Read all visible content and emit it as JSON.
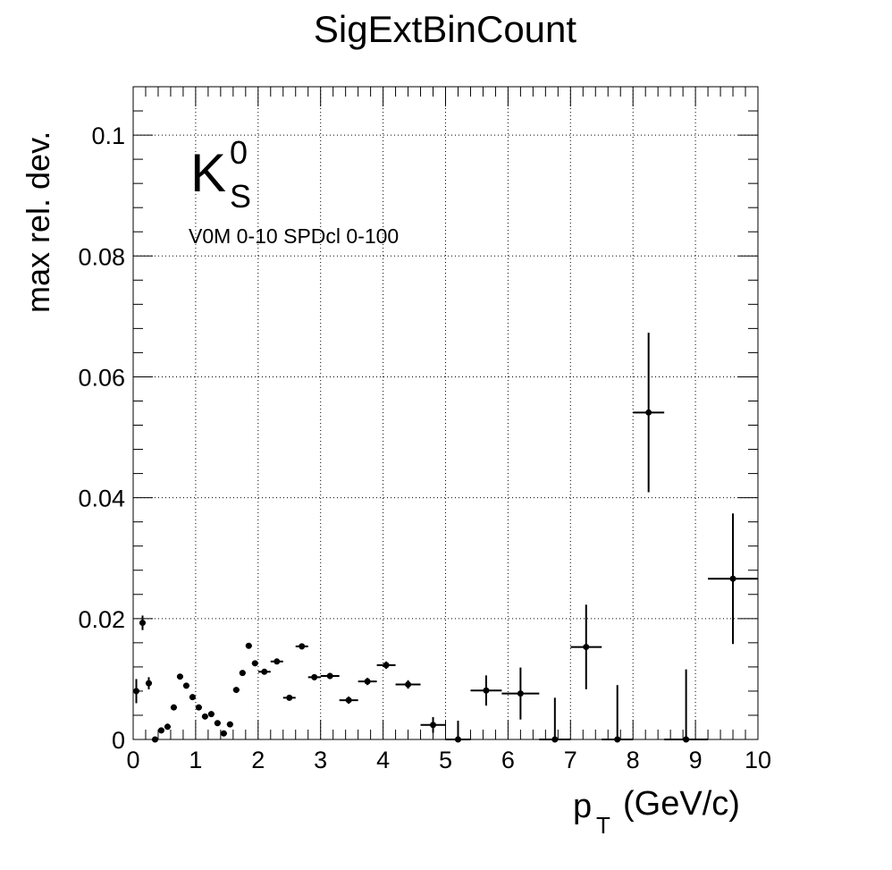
{
  "chart_data": {
    "type": "scatter",
    "title": "SigExtBinCount",
    "xlabel": "p",
    "xlabel_sub": "T",
    "xlabel_unit": "(GeV/c)",
    "ylabel": "max rel. dev.",
    "xlim": [
      0,
      10
    ],
    "ylim": [
      0,
      0.108
    ],
    "x_ticks": [
      "0",
      "1",
      "2",
      "3",
      "4",
      "5",
      "6",
      "7",
      "8",
      "9",
      "10"
    ],
    "y_ticks": [
      "0",
      "0.02",
      "0.04",
      "0.06",
      "0.08",
      "0.1"
    ],
    "grid": true,
    "particle_label": {
      "base": "K",
      "sub": "S",
      "sup": "0"
    },
    "selection_label": "V0M 0-10 SPDcl 0-100",
    "series": [
      {
        "points": [
          {
            "x": 0.05,
            "xerr": 0.05,
            "y": 0.008,
            "yerr": 0.002
          },
          {
            "x": 0.15,
            "xerr": 0.05,
            "y": 0.0193,
            "yerr": 0.0012
          },
          {
            "x": 0.25,
            "xerr": 0.05,
            "y": 0.0093,
            "yerr": 0.001
          },
          {
            "x": 0.35,
            "xerr": 0.05,
            "y": 0.0,
            "yerr": 0.0004
          },
          {
            "x": 0.45,
            "xerr": 0.05,
            "y": 0.0015,
            "yerr": 0.0003
          },
          {
            "x": 0.55,
            "xerr": 0.05,
            "y": 0.0021,
            "yerr": 0.0003
          },
          {
            "x": 0.65,
            "xerr": 0.05,
            "y": 0.0053,
            "yerr": 0.0003
          },
          {
            "x": 0.75,
            "xerr": 0.05,
            "y": 0.0104,
            "yerr": 0.0003
          },
          {
            "x": 0.85,
            "xerr": 0.05,
            "y": 0.0089,
            "yerr": 0.0003
          },
          {
            "x": 0.95,
            "xerr": 0.05,
            "y": 0.007,
            "yerr": 0.0003
          },
          {
            "x": 1.05,
            "xerr": 0.05,
            "y": 0.0053,
            "yerr": 0.0003
          },
          {
            "x": 1.15,
            "xerr": 0.05,
            "y": 0.0038,
            "yerr": 0.0003
          },
          {
            "x": 1.25,
            "xerr": 0.05,
            "y": 0.0042,
            "yerr": 0.0003
          },
          {
            "x": 1.35,
            "xerr": 0.05,
            "y": 0.0027,
            "yerr": 0.0003
          },
          {
            "x": 1.45,
            "xerr": 0.05,
            "y": 0.001,
            "yerr": 0.0003
          },
          {
            "x": 1.55,
            "xerr": 0.05,
            "y": 0.0025,
            "yerr": 0.0003
          },
          {
            "x": 1.65,
            "xerr": 0.05,
            "y": 0.0082,
            "yerr": 0.0003
          },
          {
            "x": 1.75,
            "xerr": 0.05,
            "y": 0.011,
            "yerr": 0.0003
          },
          {
            "x": 1.85,
            "xerr": 0.05,
            "y": 0.0155,
            "yerr": 0.0004
          },
          {
            "x": 1.95,
            "xerr": 0.05,
            "y": 0.0126,
            "yerr": 0.0004
          },
          {
            "x": 2.1,
            "xerr": 0.1,
            "y": 0.0112,
            "yerr": 0.0004
          },
          {
            "x": 2.3,
            "xerr": 0.1,
            "y": 0.0129,
            "yerr": 0.0004
          },
          {
            "x": 2.5,
            "xerr": 0.1,
            "y": 0.0069,
            "yerr": 0.0004
          },
          {
            "x": 2.7,
            "xerr": 0.1,
            "y": 0.0154,
            "yerr": 0.0005
          },
          {
            "x": 2.9,
            "xerr": 0.1,
            "y": 0.0103,
            "yerr": 0.0005
          },
          {
            "x": 3.15,
            "xerr": 0.15,
            "y": 0.0105,
            "yerr": 0.0005
          },
          {
            "x": 3.45,
            "xerr": 0.15,
            "y": 0.0065,
            "yerr": 0.0006
          },
          {
            "x": 3.75,
            "xerr": 0.15,
            "y": 0.0096,
            "yerr": 0.0006
          },
          {
            "x": 4.05,
            "xerr": 0.15,
            "y": 0.0123,
            "yerr": 0.0006
          },
          {
            "x": 4.4,
            "xerr": 0.2,
            "y": 0.0091,
            "yerr": 0.0007
          },
          {
            "x": 4.8,
            "xerr": 0.2,
            "y": 0.0024,
            "yerr": 0.0013
          },
          {
            "x": 5.2,
            "xerr": 0.2,
            "y": 0.0,
            "yerr": 0.0031
          },
          {
            "x": 5.65,
            "xerr": 0.25,
            "y": 0.0081,
            "yerr": 0.0025
          },
          {
            "x": 6.2,
            "xerr": 0.3,
            "y": 0.0076,
            "yerr": 0.0043
          },
          {
            "x": 6.75,
            "xerr": 0.25,
            "y": 0.0,
            "yerr": 0.0069
          },
          {
            "x": 7.25,
            "xerr": 0.25,
            "y": 0.0153,
            "yerr": 0.007
          },
          {
            "x": 7.75,
            "xerr": 0.25,
            "y": 0.0,
            "yerr": 0.009
          },
          {
            "x": 8.25,
            "xerr": 0.25,
            "y": 0.0541,
            "yerr": 0.0132
          },
          {
            "x": 8.85,
            "xerr": 0.35,
            "y": 0.0,
            "yerr": 0.0116
          },
          {
            "x": 9.6,
            "xerr": 0.4,
            "y": 0.0266,
            "yerr": 0.0108
          }
        ]
      }
    ]
  }
}
